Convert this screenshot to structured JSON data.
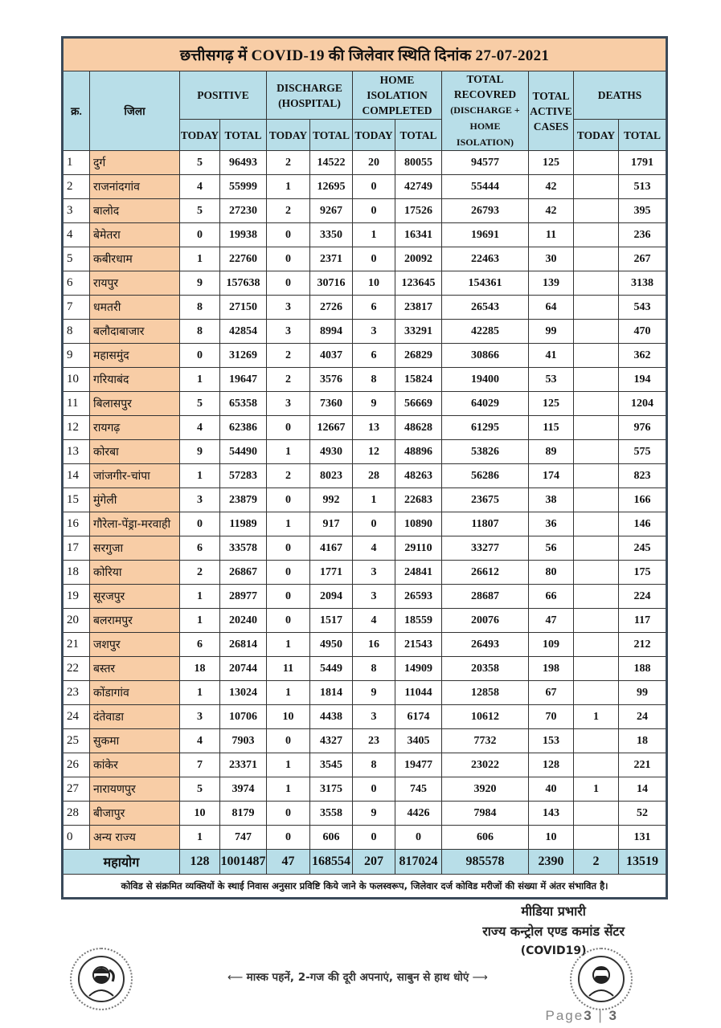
{
  "title": "छत्तीसगढ़ में COVID-19 की जिलेवार स्थिति दिनांक 27-07-2021",
  "headers": {
    "sno": "क्र.",
    "district": "जिला",
    "positive": "POSITIVE",
    "discharge": "DISCHARGE (HOSPITAL)",
    "home_isolation": "HOME ISOLATION COMPLETED",
    "total_recovered": "TOTAL RECOVRED",
    "total_recovered_sub": "(DISCHARGE + HOME ISOLATION)",
    "active": "TOTAL ACTIVE CASES",
    "deaths": "DEATHS",
    "today": "TODAY",
    "total": "TOTAL"
  },
  "rows": [
    [
      "1",
      "दुर्ग",
      "5",
      "96493",
      "2",
      "14522",
      "20",
      "80055",
      "94577",
      "125",
      "",
      "1791"
    ],
    [
      "2",
      "राजनांदगांव",
      "4",
      "55999",
      "1",
      "12695",
      "0",
      "42749",
      "55444",
      "42",
      "",
      "513"
    ],
    [
      "3",
      "बालोद",
      "5",
      "27230",
      "2",
      "9267",
      "0",
      "17526",
      "26793",
      "42",
      "",
      "395"
    ],
    [
      "4",
      "बेमेतरा",
      "0",
      "19938",
      "0",
      "3350",
      "1",
      "16341",
      "19691",
      "11",
      "",
      "236"
    ],
    [
      "5",
      "कबीरधाम",
      "1",
      "22760",
      "0",
      "2371",
      "0",
      "20092",
      "22463",
      "30",
      "",
      "267"
    ],
    [
      "6",
      "रायपुर",
      "9",
      "157638",
      "0",
      "30716",
      "10",
      "123645",
      "154361",
      "139",
      "",
      "3138"
    ],
    [
      "7",
      "धमतरी",
      "8",
      "27150",
      "3",
      "2726",
      "6",
      "23817",
      "26543",
      "64",
      "",
      "543"
    ],
    [
      "8",
      "बलौदाबाजार",
      "8",
      "42854",
      "3",
      "8994",
      "3",
      "33291",
      "42285",
      "99",
      "",
      "470"
    ],
    [
      "9",
      "महासमुंद",
      "0",
      "31269",
      "2",
      "4037",
      "6",
      "26829",
      "30866",
      "41",
      "",
      "362"
    ],
    [
      "10",
      "गरियाबंद",
      "1",
      "19647",
      "2",
      "3576",
      "8",
      "15824",
      "19400",
      "53",
      "",
      "194"
    ],
    [
      "11",
      "बिलासपुर",
      "5",
      "65358",
      "3",
      "7360",
      "9",
      "56669",
      "64029",
      "125",
      "",
      "1204"
    ],
    [
      "12",
      "रायगढ़",
      "4",
      "62386",
      "0",
      "12667",
      "13",
      "48628",
      "61295",
      "115",
      "",
      "976"
    ],
    [
      "13",
      "कोरबा",
      "9",
      "54490",
      "1",
      "4930",
      "12",
      "48896",
      "53826",
      "89",
      "",
      "575"
    ],
    [
      "14",
      "जांजगीर-चांपा",
      "1",
      "57283",
      "2",
      "8023",
      "28",
      "48263",
      "56286",
      "174",
      "",
      "823"
    ],
    [
      "15",
      "मुंगेली",
      "3",
      "23879",
      "0",
      "992",
      "1",
      "22683",
      "23675",
      "38",
      "",
      "166"
    ],
    [
      "16",
      "गौरेला-पेंड्रा-मरवाही",
      "0",
      "11989",
      "1",
      "917",
      "0",
      "10890",
      "11807",
      "36",
      "",
      "146"
    ],
    [
      "17",
      "सरगुजा",
      "6",
      "33578",
      "0",
      "4167",
      "4",
      "29110",
      "33277",
      "56",
      "",
      "245"
    ],
    [
      "18",
      "कोरिया",
      "2",
      "26867",
      "0",
      "1771",
      "3",
      "24841",
      "26612",
      "80",
      "",
      "175"
    ],
    [
      "19",
      "सूरजपुर",
      "1",
      "28977",
      "0",
      "2094",
      "3",
      "26593",
      "28687",
      "66",
      "",
      "224"
    ],
    [
      "20",
      "बलरामपुर",
      "1",
      "20240",
      "0",
      "1517",
      "4",
      "18559",
      "20076",
      "47",
      "",
      "117"
    ],
    [
      "21",
      "जशपुर",
      "6",
      "26814",
      "1",
      "4950",
      "16",
      "21543",
      "26493",
      "109",
      "",
      "212"
    ],
    [
      "22",
      "बस्तर",
      "18",
      "20744",
      "11",
      "5449",
      "8",
      "14909",
      "20358",
      "198",
      "",
      "188"
    ],
    [
      "23",
      "कोंडागांव",
      "1",
      "13024",
      "1",
      "1814",
      "9",
      "11044",
      "12858",
      "67",
      "",
      "99"
    ],
    [
      "24",
      "दंतेवाडा",
      "3",
      "10706",
      "10",
      "4438",
      "3",
      "6174",
      "10612",
      "70",
      "1",
      "24"
    ],
    [
      "25",
      "सुकमा",
      "4",
      "7903",
      "0",
      "4327",
      "23",
      "3405",
      "7732",
      "153",
      "",
      "18"
    ],
    [
      "26",
      "कांकेर",
      "7",
      "23371",
      "1",
      "3545",
      "8",
      "19477",
      "23022",
      "128",
      "",
      "221"
    ],
    [
      "27",
      "नारायणपुर",
      "5",
      "3974",
      "1",
      "3175",
      "0",
      "745",
      "3920",
      "40",
      "1",
      "14"
    ],
    [
      "28",
      "बीजापुर",
      "10",
      "8179",
      "0",
      "3558",
      "9",
      "4426",
      "7984",
      "143",
      "",
      "52"
    ],
    [
      "0",
      "अन्य राज्य",
      "1",
      "747",
      "0",
      "606",
      "0",
      "0",
      "606",
      "10",
      "",
      "131"
    ]
  ],
  "total_row": {
    "label": "महायोग",
    "values": [
      "128",
      "1001487",
      "47",
      "168554",
      "207",
      "817024",
      "985578",
      "2390",
      "2",
      "13519"
    ]
  },
  "note": "कोविड से संक्रमित व्यक्तियों के स्थाई निवास अनुसार प्रविष्टि किये जाने के फलस्वरूप, जिलेवार दर्ज कोविड मरीजों की संख्या में अंतर संभावित है।",
  "signature": {
    "line1": "मीडिया प्रभारी",
    "line2": "राज्य कन्ट्रोल एण्ड कमांड सेंटर",
    "line3": "(COVID19)"
  },
  "slogan": "मास्क पहनें, 2-गज की दूरी अपनाएं, साबुन से हाथ धोएं",
  "page": {
    "label": "Page",
    "current": "3",
    "total": "3"
  },
  "colors": {
    "title_bg": "#f8cda6",
    "header_bg": "#b8dee8",
    "district_bg": "#f8cda6"
  }
}
